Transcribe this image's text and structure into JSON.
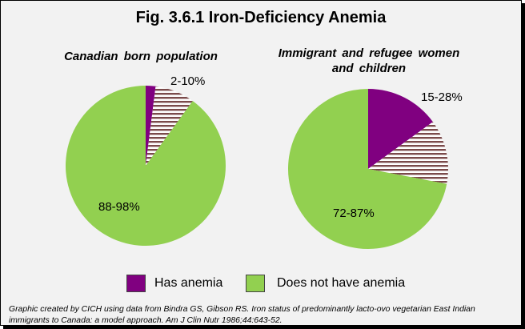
{
  "title": "Fig. 3.6.1 Iron-Deficiency Anemia",
  "colors": {
    "has_anemia": "#800080",
    "middle_range": "#7a4a4a",
    "does_not_have_anemia": "#92d050"
  },
  "chart_data": [
    {
      "type": "pie",
      "title": "Canadian  born population",
      "slices": [
        {
          "series": "Has anemia",
          "value": 2,
          "pattern": "solid"
        },
        {
          "series": "Has anemia",
          "value": 8,
          "pattern": "striped"
        },
        {
          "series": "Does not have anemia",
          "value": 90,
          "pattern": "solid"
        }
      ],
      "labels": {
        "anemia_range": "2-10%",
        "no_anemia_range": "88-98%"
      }
    },
    {
      "type": "pie",
      "title": "Immigrant  and  refugee women and children",
      "slices": [
        {
          "series": "Has anemia",
          "value": 15,
          "pattern": "solid"
        },
        {
          "series": "Has anemia",
          "value": 13,
          "pattern": "striped"
        },
        {
          "series": "Does not have anemia",
          "value": 72,
          "pattern": "solid"
        }
      ],
      "labels": {
        "anemia_range": "15-28%",
        "no_anemia_range": "72-87%"
      }
    }
  ],
  "legend": [
    {
      "label": "Has anemia",
      "color": "#800080"
    },
    {
      "label": "Does not have anemia",
      "color": "#92d050"
    }
  ],
  "source_note": "Graphic created by CICH using data from Bindra GS, Gibson RS. Iron status of predominantly lacto-ovo vegetarian East Indian immigrants to Canada: a model approach. Am J Clin Nutr 1986;44:643-52."
}
